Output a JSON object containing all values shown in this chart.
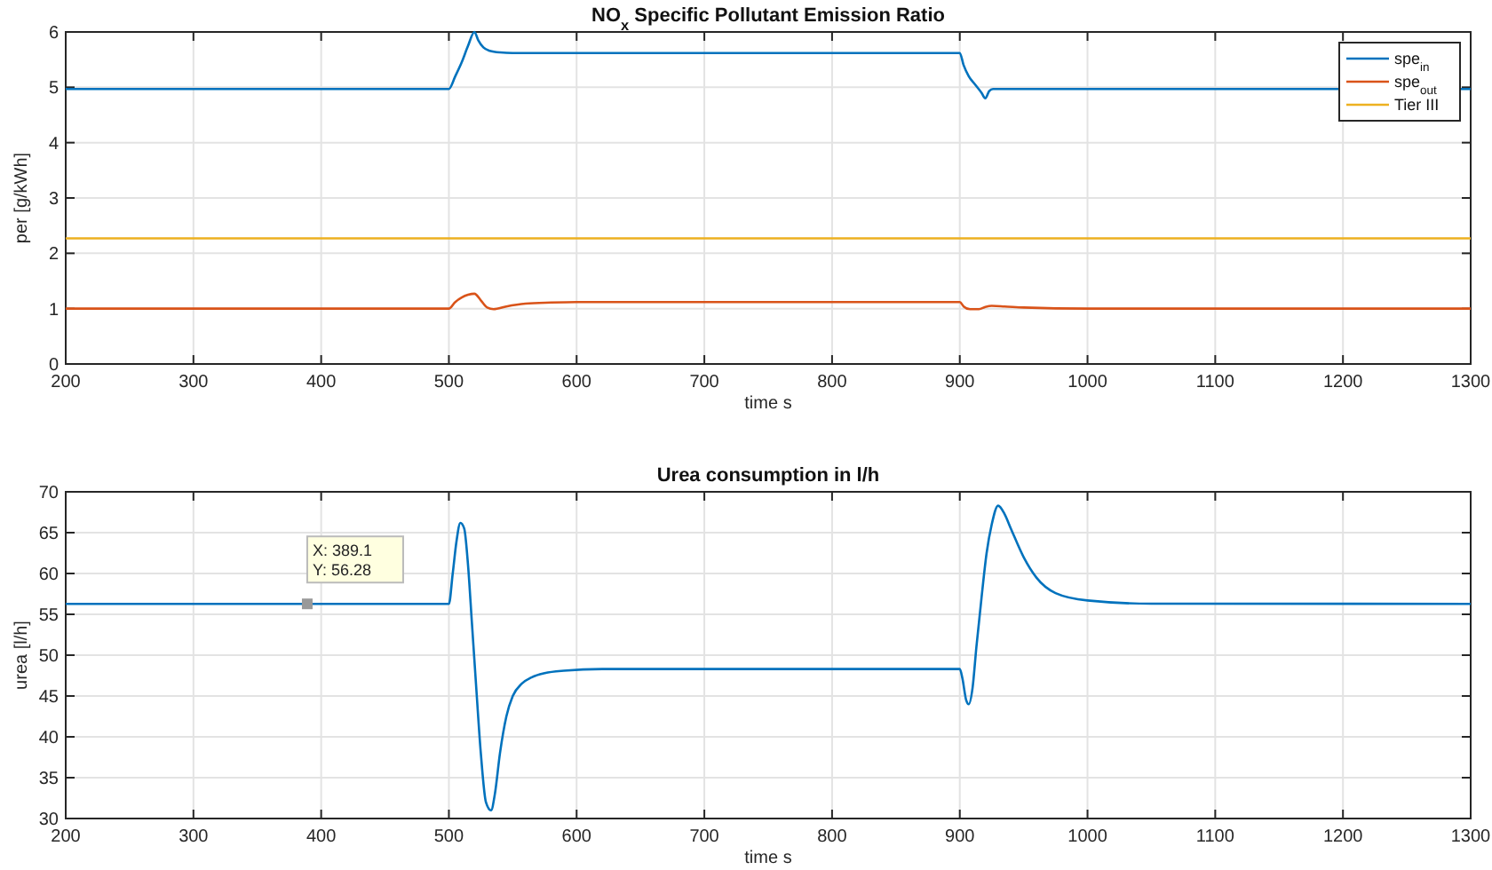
{
  "chart_data": [
    {
      "type": "line",
      "title": "NO$_{x}$ Specific Pollutant Emission Ratio",
      "xlabel": "time s",
      "ylabel": "per [g/kWh]",
      "xlim": [
        200,
        1300
      ],
      "xticks": [
        200,
        300,
        400,
        500,
        600,
        700,
        800,
        900,
        1000,
        1100,
        1200,
        1300
      ],
      "ylim": [
        0,
        6
      ],
      "yticks": [
        0,
        1,
        2,
        3,
        4,
        5,
        6
      ],
      "grid": true,
      "legend": "top right",
      "line_style": "solid",
      "series": [
        {
          "name": "spe$_{in}$",
          "color": "#0072bd",
          "x": [
            200,
            500,
            505,
            510,
            515,
            520,
            523,
            527,
            532,
            540,
            550,
            600,
            700,
            800,
            900,
            903,
            907,
            912,
            917,
            920,
            923,
            926,
            1000,
            1300
          ],
          "values": [
            4.97,
            4.97,
            5.2,
            5.45,
            5.75,
            6.0,
            5.85,
            5.72,
            5.66,
            5.63,
            5.62,
            5.62,
            5.62,
            5.62,
            5.62,
            5.4,
            5.2,
            5.05,
            4.9,
            4.8,
            4.93,
            4.97,
            4.97,
            4.97
          ]
        },
        {
          "name": "spe$_{out}$",
          "color": "#d95319",
          "x": [
            200,
            500,
            505,
            510,
            515,
            520,
            525,
            530,
            535,
            545,
            560,
            580,
            600,
            700,
            800,
            900,
            903,
            908,
            915,
            920,
            925,
            935,
            950,
            1000,
            1300
          ],
          "values": [
            1.0,
            1.0,
            1.12,
            1.2,
            1.25,
            1.27,
            1.15,
            1.02,
            0.99,
            1.04,
            1.09,
            1.11,
            1.12,
            1.12,
            1.12,
            1.12,
            1.04,
            0.99,
            0.99,
            1.03,
            1.05,
            1.04,
            1.02,
            1.0,
            1.0
          ]
        },
        {
          "name": "Tier III",
          "color": "#edb120",
          "x": [
            200,
            1300
          ],
          "values": [
            2.27,
            2.27
          ]
        }
      ]
    },
    {
      "type": "line",
      "title": "Urea consumption in l/h",
      "xlabel": "time s",
      "ylabel": "urea [l/h]",
      "xlim": [
        200,
        1300
      ],
      "xticks": [
        200,
        300,
        400,
        500,
        600,
        700,
        800,
        900,
        1000,
        1100,
        1200,
        1300
      ],
      "ylim": [
        30,
        70
      ],
      "yticks": [
        30,
        35,
        40,
        45,
        50,
        55,
        60,
        65,
        70
      ],
      "grid": true,
      "legend": false,
      "line_style": "solid",
      "annotations": [
        {
          "text": "X: 389.1\nY: 56.28",
          "x": 389.1,
          "y": 56.28
        }
      ],
      "series": [
        {
          "color": "#0072bd",
          "x": [
            200,
            500,
            503,
            506,
            509,
            512,
            515,
            518,
            521,
            525,
            529,
            533,
            536,
            540,
            545,
            550,
            557,
            565,
            575,
            590,
            620,
            700,
            800,
            900,
            902,
            905,
            907,
            910,
            913,
            917,
            921,
            925,
            930,
            935,
            940,
            950,
            960,
            975,
            1000,
            1050,
            1300
          ],
          "values": [
            56.28,
            56.28,
            60,
            64,
            66.2,
            65.5,
            61,
            54,
            47,
            38,
            32,
            31,
            33,
            38,
            42.5,
            45,
            46.5,
            47.3,
            47.8,
            48.1,
            48.3,
            48.3,
            48.3,
            48.3,
            47.2,
            44.5,
            44,
            46,
            51,
            57,
            62.5,
            66,
            68.3,
            67.3,
            65.5,
            62,
            59.5,
            57.6,
            56.7,
            56.3,
            56.28
          ]
        }
      ]
    }
  ]
}
